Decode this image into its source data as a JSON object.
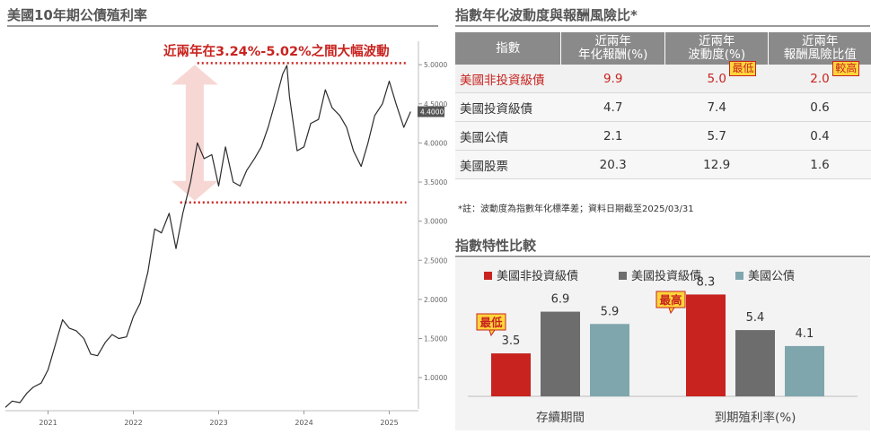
{
  "left_panel": {
    "title": "美國10年期公債殖利率",
    "annotation": "近兩年在3.24%-5.02%之間大幅波動"
  },
  "right_top": {
    "title": "指數年化波動度與報酬風險比*",
    "table": {
      "headers": [
        "指數",
        "近兩年\n年化報酬(%)",
        "近兩年\n波動度(%)",
        "近兩年\n報酬風險比值"
      ],
      "rows": [
        {
          "name": "美國非投資級債",
          "ret": "9.9",
          "vol": "5.0",
          "ratio": "2.0",
          "highlight": true,
          "vol_tag": "最低",
          "ratio_tag": "較高"
        },
        {
          "name": "美國投資級債",
          "ret": "4.7",
          "vol": "7.4",
          "ratio": "0.6"
        },
        {
          "name": "美國公債",
          "ret": "2.1",
          "vol": "5.7",
          "ratio": "0.4"
        },
        {
          "name": "美國股票",
          "ret": "20.3",
          "vol": "12.9",
          "ratio": "1.6"
        }
      ]
    },
    "note": "*註：波動度為指數年化標準差；資料日期截至2025/03/31"
  },
  "right_bottom": {
    "title": "指數特性比較",
    "tags": {
      "low": "最低",
      "high": "最高"
    }
  },
  "chart_data": [
    {
      "type": "line",
      "title": "美國10年期公債殖利率",
      "x_ticks": [
        "2021",
        "2022",
        "2023",
        "2024",
        "2025"
      ],
      "y_ticks": [
        "1.0000",
        "1.5000",
        "2.0000",
        "2.5000",
        "3.0000",
        "3.5000",
        "4.0000",
        "4.5000",
        "5.0000"
      ],
      "ylim": [
        0.6,
        5.3
      ],
      "last_value_label": "4.4000",
      "reference_lines": [
        5.02,
        3.24
      ],
      "series": [
        {
          "x": [
            2020.5,
            2020.58,
            2020.67,
            2020.75,
            2020.83,
            2020.92,
            2021.0,
            2021.08,
            2021.17,
            2021.25,
            2021.33,
            2021.42,
            2021.5,
            2021.58,
            2021.67,
            2021.75,
            2021.83,
            2021.92,
            2022.0,
            2022.08,
            2022.17,
            2022.25,
            2022.33,
            2022.42,
            2022.5,
            2022.58,
            2022.67,
            2022.75,
            2022.83,
            2022.92,
            2023.0,
            2023.08,
            2023.17,
            2023.25,
            2023.33,
            2023.42,
            2023.5,
            2023.58,
            2023.67,
            2023.75,
            2023.8,
            2023.83,
            2023.92,
            2024.0,
            2024.08,
            2024.17,
            2024.25,
            2024.33,
            2024.42,
            2024.5,
            2024.58,
            2024.67,
            2024.75,
            2024.83,
            2024.92,
            2025.0,
            2025.08,
            2025.17,
            2025.25
          ],
          "values": [
            0.62,
            0.7,
            0.68,
            0.8,
            0.88,
            0.93,
            1.1,
            1.4,
            1.74,
            1.63,
            1.6,
            1.5,
            1.3,
            1.28,
            1.45,
            1.55,
            1.5,
            1.52,
            1.78,
            1.95,
            2.35,
            2.9,
            2.85,
            3.1,
            2.65,
            3.1,
            3.5,
            4.0,
            3.8,
            3.85,
            3.45,
            3.95,
            3.5,
            3.45,
            3.65,
            3.8,
            3.95,
            4.2,
            4.55,
            4.88,
            4.99,
            4.6,
            3.9,
            3.95,
            4.25,
            4.3,
            4.68,
            4.45,
            4.35,
            4.2,
            3.9,
            3.7,
            4.0,
            4.35,
            4.5,
            4.79,
            4.5,
            4.2,
            4.4
          ]
        }
      ]
    },
    {
      "type": "bar",
      "categories": [
        "存續期間",
        "到期殖利率(%)"
      ],
      "series": [
        {
          "name": "美國非投資級債",
          "color": "#c8231f",
          "values": [
            3.5,
            8.3
          ]
        },
        {
          "name": "美國投資級債",
          "color": "#6d6d6d",
          "values": [
            6.9,
            5.4
          ]
        },
        {
          "name": "美國公債",
          "color": "#7fa6ad",
          "values": [
            5.9,
            4.1
          ]
        }
      ],
      "ylim": [
        0,
        9.5
      ]
    }
  ]
}
